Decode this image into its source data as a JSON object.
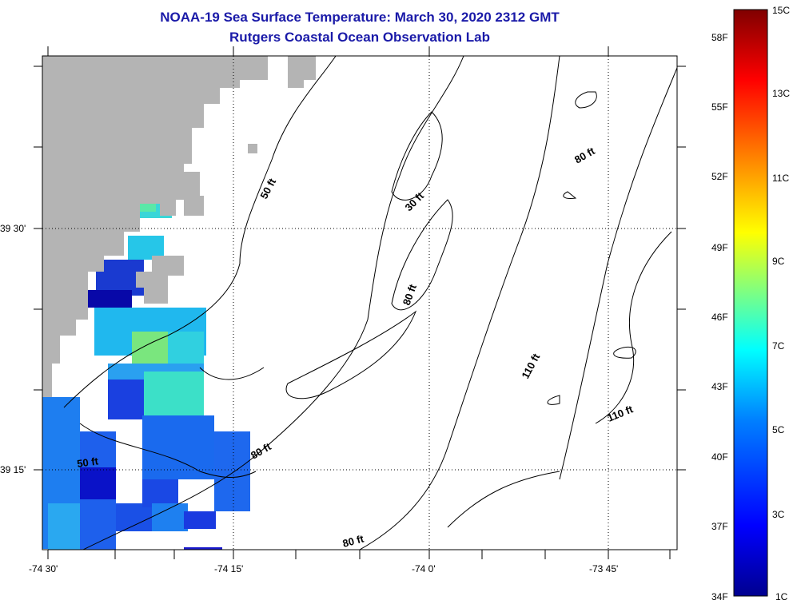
{
  "title_line1": "NOAA-19 Sea Surface Temperature:  March 30, 2020 2312 GMT",
  "title_line2": "Rutgers Coastal Ocean Observation Lab",
  "axes": {
    "lat_labels": [
      "39 30'",
      "39 15'"
    ],
    "lon_labels": [
      "-74 30'",
      "-74 15'",
      "-74 0'",
      "-73 45'"
    ]
  },
  "contour_labels": [
    "50 ft",
    "30 ft",
    "80 ft",
    "80 ft",
    "110 ft",
    "110 ft",
    "50 ft",
    "80 ft",
    "80 ft"
  ],
  "colorbar": {
    "top_label": "15C",
    "bottom_left": "34F",
    "bottom_right": "1C",
    "f_labels": [
      "58F",
      "55F",
      "52F",
      "49F",
      "46F",
      "43F",
      "40F",
      "37F"
    ],
    "c_labels": [
      "13C",
      "11C",
      "9C",
      "7C",
      "5C",
      "3C"
    ],
    "colors": [
      "#00008f",
      "#0000ff",
      "#0080ff",
      "#00ffff",
      "#80ff80",
      "#ffff00",
      "#ff8000",
      "#ff0000",
      "#800000"
    ]
  },
  "colors": {
    "land": "#b4b4b4",
    "title": "#1a1aa8"
  }
}
